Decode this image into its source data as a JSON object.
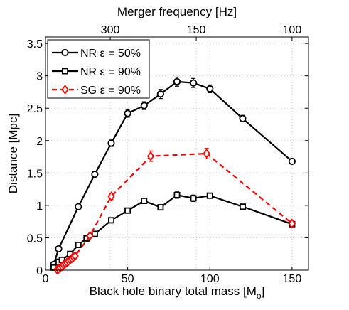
{
  "chart_data": {
    "type": "line",
    "xlabel": "Black hole binary total mass [M",
    "xlabel_subscript": "o",
    "xlabel_close": "]",
    "ylabel": "Distance [Mpc]",
    "top_axis_label": "Merger frequency [Hz]",
    "xlim": [
      0,
      160
    ],
    "ylim": [
      0,
      3.6
    ],
    "x_ticks": [
      0,
      50,
      100,
      150
    ],
    "y_ticks": [
      0,
      0.5,
      1,
      1.5,
      2,
      2.5,
      3,
      3.5
    ],
    "x_tick_labels": [
      "0",
      "50",
      "100",
      "150"
    ],
    "y_tick_labels": [
      "0",
      "0.5",
      "1",
      "1.5",
      "2",
      "2.5",
      "3",
      "3.5"
    ],
    "top_ticks": [
      {
        "label": "300",
        "x": 39.4
      },
      {
        "label": "150",
        "x": 91.7
      },
      {
        "label": "100",
        "x": 150
      }
    ],
    "grid": true,
    "legend_position": "top-left",
    "series": [
      {
        "name": "NR ε = 50%",
        "color": "#000000",
        "marker": "circle",
        "line": "solid",
        "x": [
          5,
          8,
          20,
          30,
          40,
          50,
          60,
          70,
          80,
          90,
          100,
          120,
          150
        ],
        "y": [
          0.09,
          0.33,
          0.98,
          1.48,
          1.96,
          2.42,
          2.54,
          2.72,
          2.91,
          2.89,
          2.8,
          2.34,
          1.68
        ],
        "err": [
          0.03,
          0.03,
          0.03,
          0.04,
          0.05,
          0.06,
          0.06,
          0.07,
          0.07,
          0.07,
          0.06,
          0.05,
          0.04
        ]
      },
      {
        "name": "NR ε = 90%",
        "color": "#000000",
        "marker": "square",
        "line": "solid",
        "x": [
          5,
          8,
          10,
          15,
          20,
          25,
          30,
          40,
          50,
          60,
          70,
          80,
          90,
          100,
          120,
          150
        ],
        "y": [
          0.04,
          0.13,
          0.16,
          0.25,
          0.39,
          0.49,
          0.56,
          0.77,
          0.92,
          1.07,
          0.97,
          1.16,
          1.11,
          1.15,
          0.98,
          0.71
        ],
        "err": [
          0.02,
          0.02,
          0.02,
          0.02,
          0.03,
          0.03,
          0.03,
          0.03,
          0.03,
          0.04,
          0.04,
          0.05,
          0.05,
          0.04,
          0.03,
          0.03
        ]
      },
      {
        "name": "SG ε = 90%",
        "color": "#ff0000",
        "marker": "diamond",
        "line": "dashed",
        "x": [
          7,
          8,
          9,
          10,
          11,
          12,
          13,
          14,
          15,
          16,
          17,
          18,
          27,
          40,
          64,
          98,
          150
        ],
        "y": [
          0.01,
          0.02,
          0.04,
          0.06,
          0.08,
          0.1,
          0.12,
          0.14,
          0.16,
          0.18,
          0.2,
          0.22,
          0.53,
          1.14,
          1.76,
          1.8,
          0.72
        ],
        "err": [
          0.01,
          0.01,
          0.01,
          0.01,
          0.01,
          0.01,
          0.01,
          0.01,
          0.01,
          0.01,
          0.01,
          0.01,
          0.03,
          0.05,
          0.08,
          0.08,
          0.04
        ]
      }
    ]
  }
}
